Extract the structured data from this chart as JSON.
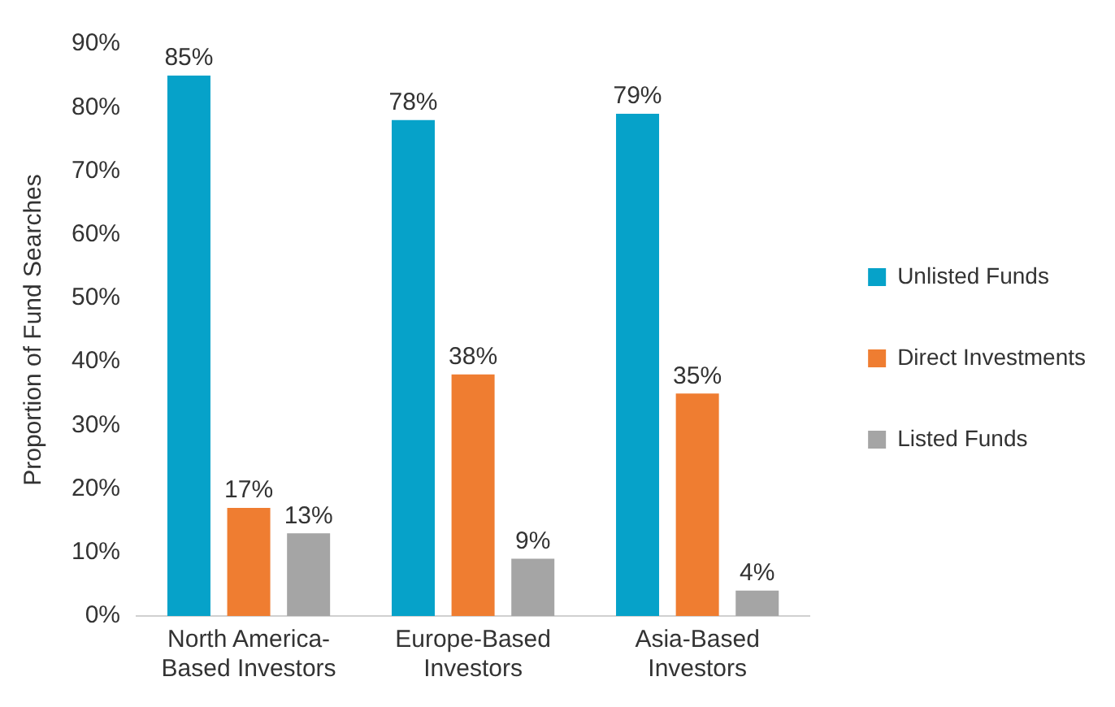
{
  "chart_data": {
    "type": "bar",
    "ylabel": "Proportion of Fund Searches",
    "categories": [
      "North America-Based Investors",
      "Europe-Based Investors",
      "Asia-Based Investors"
    ],
    "series": [
      {
        "name": "Unlisted Funds",
        "color": "#06a2c9",
        "values": [
          85,
          78,
          79
        ],
        "value_labels": [
          "85%",
          "78%",
          "79%"
        ]
      },
      {
        "name": "Direct Investments",
        "color": "#ef7d31",
        "values": [
          17,
          38,
          35
        ],
        "value_labels": [
          "17%",
          "38%",
          "35%"
        ]
      },
      {
        "name": "Listed Funds",
        "color": "#a5a5a5",
        "values": [
          13,
          9,
          4
        ],
        "value_labels": [
          "13%",
          "9%",
          "4%"
        ]
      }
    ],
    "ylim": [
      0,
      90
    ],
    "yticks": [
      {
        "value": 0,
        "label": "0%"
      },
      {
        "value": 10,
        "label": "10%"
      },
      {
        "value": 20,
        "label": "20%"
      },
      {
        "value": 30,
        "label": "30%"
      },
      {
        "value": 40,
        "label": "40%"
      },
      {
        "value": 50,
        "label": "50%"
      },
      {
        "value": 60,
        "label": "60%"
      },
      {
        "value": 70,
        "label": "70%"
      },
      {
        "value": 80,
        "label": "80%"
      },
      {
        "value": 90,
        "label": "90%"
      }
    ],
    "grid": false,
    "legend": "right"
  }
}
